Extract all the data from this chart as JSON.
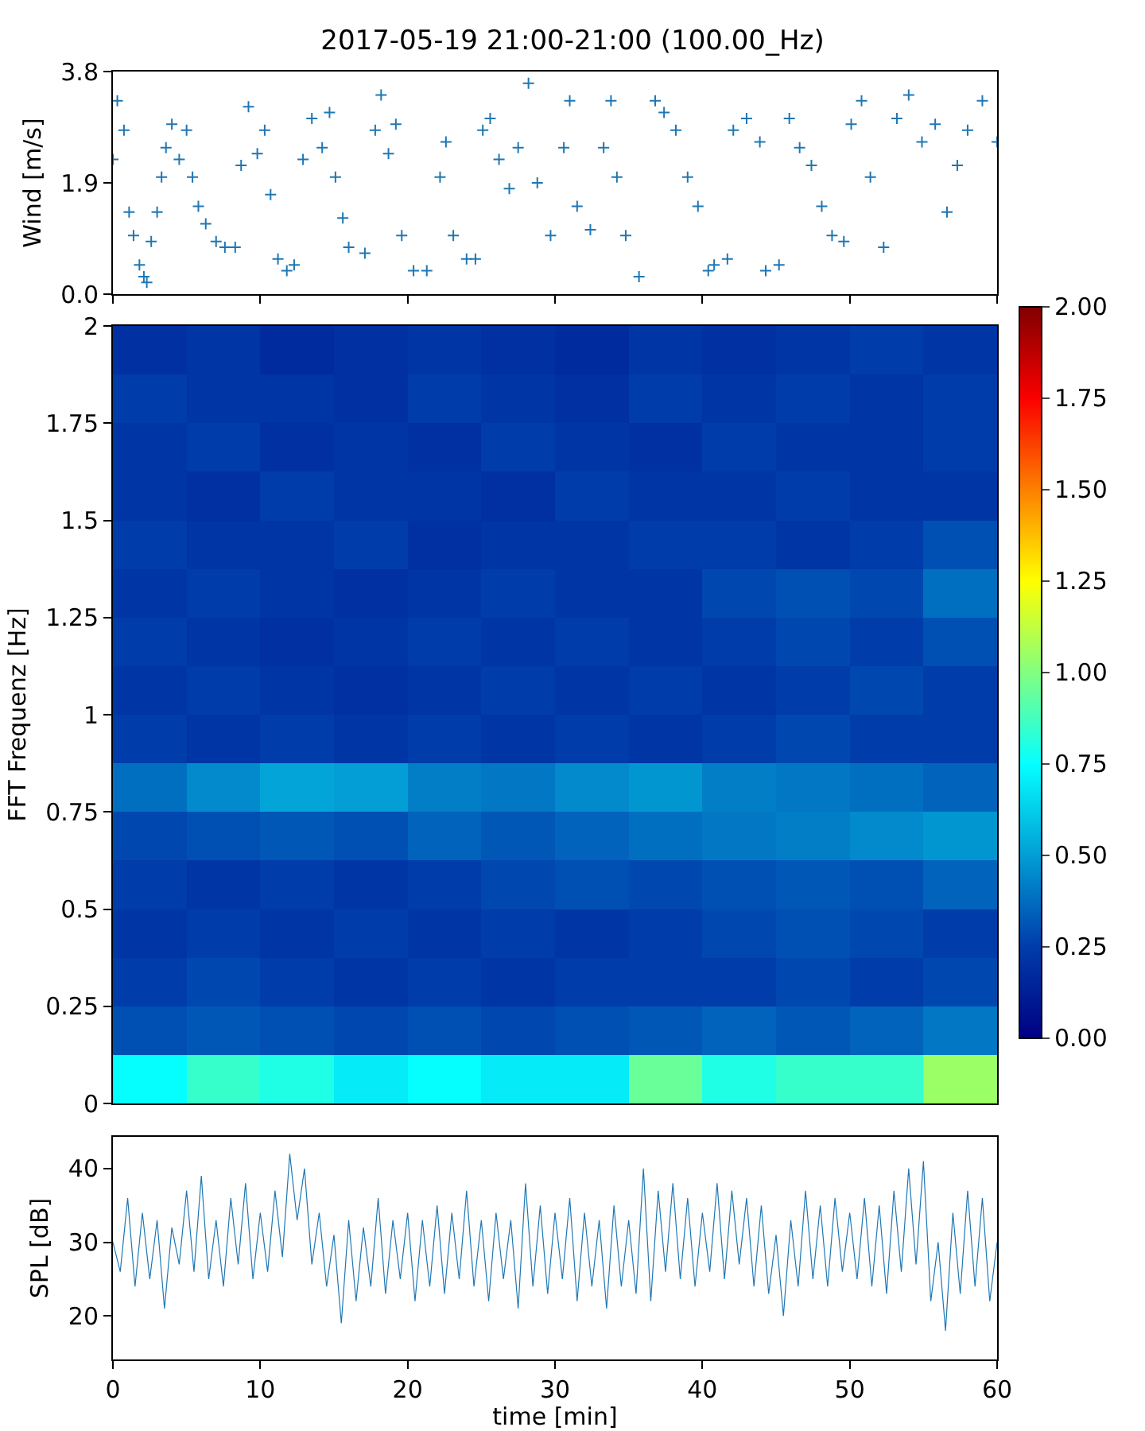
{
  "chart_data": [
    {
      "type": "scatter",
      "title": "2017-05-19 21:00-21:00 (100.00_Hz)",
      "ylabel": "Wind [m/s]",
      "marker": "cross",
      "tick_labels": "y",
      "xlim": [
        0,
        60
      ],
      "xticks": [
        {
          "value": 0,
          "label": null
        },
        {
          "value": 10,
          "label": null
        },
        {
          "value": 20,
          "label": null
        },
        {
          "value": 30,
          "label": null
        },
        {
          "value": 40,
          "label": null
        },
        {
          "value": 50,
          "label": null
        },
        {
          "value": 60,
          "label": null
        }
      ],
      "ylim": [
        0,
        3.8
      ],
      "yticks": [
        {
          "value": 0,
          "label": "0.0"
        },
        {
          "value": 1.9,
          "label": "1.9"
        },
        {
          "value": 3.8,
          "label": "3.8"
        }
      ],
      "series": [
        {
          "color": "#1f77b4",
          "x": [
            0,
            0.3,
            0.75,
            1.1,
            1.4,
            1.8,
            2.1,
            2.3,
            2.6,
            3,
            3.3,
            3.6,
            4,
            4.5,
            5,
            5.4,
            5.8,
            6.3,
            7,
            7.6,
            8.3,
            8.7,
            9.2,
            9.8,
            10.3,
            10.7,
            11.2,
            11.8,
            12.3,
            12.9,
            13.5,
            14.2,
            14.7,
            15.1,
            15.6,
            16,
            17.1,
            17.8,
            18.2,
            18.7,
            19.2,
            19.6,
            20.4,
            21.3,
            22.2,
            22.6,
            23.1,
            24,
            24.6,
            25.1,
            25.6,
            26.2,
            26.9,
            27.5,
            28.2,
            28.8,
            29.7,
            30.6,
            31,
            31.5,
            32.4,
            33.3,
            33.8,
            34.2,
            34.8,
            35.7,
            36.8,
            37.4,
            38.2,
            39,
            39.7,
            40.4,
            40.8,
            41.7,
            42.1,
            43,
            43.9,
            44.3,
            45.2,
            45.9,
            46.6,
            47.4,
            48.1,
            48.8,
            49.6,
            50.1,
            50.8,
            51.4,
            52.3,
            53.2,
            54,
            54.9,
            55.8,
            56.6,
            57.3,
            58,
            59,
            60
          ],
          "values": [
            2.3,
            3.3,
            2.8,
            1.4,
            1.0,
            0.5,
            0.3,
            0.2,
            0.9,
            1.4,
            2.0,
            2.5,
            2.9,
            2.3,
            2.8,
            2.0,
            1.5,
            1.2,
            0.9,
            0.8,
            0.8,
            2.2,
            3.2,
            2.4,
            2.8,
            1.7,
            0.6,
            0.4,
            0.5,
            2.3,
            3.0,
            2.5,
            3.1,
            2.0,
            1.3,
            0.8,
            0.7,
            2.8,
            3.4,
            2.4,
            2.9,
            1.0,
            0.4,
            0.4,
            2.0,
            2.6,
            1.0,
            0.6,
            0.6,
            2.8,
            3.0,
            2.3,
            1.8,
            2.5,
            3.6,
            1.9,
            1.0,
            2.5,
            3.3,
            1.5,
            1.1,
            2.5,
            3.3,
            2.0,
            1.0,
            0.3,
            3.3,
            3.1,
            2.8,
            2.0,
            1.5,
            0.4,
            0.5,
            0.6,
            2.8,
            3.0,
            2.6,
            0.4,
            0.5,
            3.0,
            2.5,
            2.2,
            1.5,
            1.0,
            0.9,
            2.9,
            3.3,
            2.0,
            0.8,
            3.0,
            3.4,
            2.6,
            2.9,
            1.4,
            2.2,
            2.8,
            3.3,
            2.6
          ]
        }
      ]
    },
    {
      "type": "heatmap",
      "ylabel": "FFT Frequenz [Hz]",
      "tick_labels": "y",
      "xlim": [
        0,
        60
      ],
      "ylim": [
        0,
        2
      ],
      "yticks": [
        0,
        0.25,
        0.5,
        0.75,
        1,
        1.25,
        1.5,
        1.75,
        2
      ],
      "clim": [
        0,
        2
      ],
      "cticks": [
        {
          "value": 0,
          "label": "0.00"
        },
        {
          "value": 0.25,
          "label": "0.25"
        },
        {
          "value": 0.5,
          "label": "0.50"
        },
        {
          "value": 0.75,
          "label": "0.75"
        },
        {
          "value": 1,
          "label": "1.00"
        },
        {
          "value": 1.25,
          "label": "1.25"
        },
        {
          "value": 1.5,
          "label": "1.50"
        },
        {
          "value": 1.75,
          "label": "1.75"
        },
        {
          "value": 2,
          "label": "2.00"
        }
      ],
      "x": [
        2.5,
        7.5,
        12.5,
        17.5,
        22.5,
        27.5,
        32.5,
        37.5,
        42.5,
        47.5,
        52.5,
        57.5
      ],
      "cells": [
        [
          0.2,
          0.22,
          0.18,
          0.2,
          0.22,
          0.2,
          0.18,
          0.22,
          0.2,
          0.22,
          0.25,
          0.22
        ],
        [
          0.25,
          0.22,
          0.22,
          0.2,
          0.25,
          0.22,
          0.2,
          0.25,
          0.22,
          0.25,
          0.22,
          0.25
        ],
        [
          0.22,
          0.25,
          0.2,
          0.22,
          0.2,
          0.25,
          0.22,
          0.2,
          0.25,
          0.22,
          0.22,
          0.25
        ],
        [
          0.22,
          0.2,
          0.25,
          0.22,
          0.22,
          0.2,
          0.25,
          0.22,
          0.22,
          0.25,
          0.22,
          0.22
        ],
        [
          0.25,
          0.22,
          0.22,
          0.25,
          0.2,
          0.22,
          0.22,
          0.25,
          0.25,
          0.22,
          0.25,
          0.3
        ],
        [
          0.22,
          0.25,
          0.22,
          0.2,
          0.22,
          0.25,
          0.22,
          0.22,
          0.28,
          0.3,
          0.28,
          0.38
        ],
        [
          0.25,
          0.22,
          0.2,
          0.22,
          0.25,
          0.22,
          0.25,
          0.22,
          0.25,
          0.28,
          0.25,
          0.3
        ],
        [
          0.22,
          0.25,
          0.22,
          0.2,
          0.22,
          0.25,
          0.22,
          0.25,
          0.22,
          0.25,
          0.28,
          0.25
        ],
        [
          0.25,
          0.22,
          0.25,
          0.22,
          0.25,
          0.22,
          0.25,
          0.22,
          0.25,
          0.28,
          0.25,
          0.25
        ],
        [
          0.38,
          0.45,
          0.52,
          0.5,
          0.42,
          0.4,
          0.45,
          0.48,
          0.42,
          0.4,
          0.38,
          0.35
        ],
        [
          0.28,
          0.3,
          0.32,
          0.3,
          0.35,
          0.32,
          0.35,
          0.38,
          0.4,
          0.42,
          0.45,
          0.48
        ],
        [
          0.25,
          0.22,
          0.25,
          0.22,
          0.25,
          0.28,
          0.3,
          0.28,
          0.3,
          0.32,
          0.3,
          0.35
        ],
        [
          0.22,
          0.25,
          0.22,
          0.25,
          0.22,
          0.25,
          0.22,
          0.25,
          0.28,
          0.3,
          0.28,
          0.25
        ],
        [
          0.25,
          0.28,
          0.25,
          0.22,
          0.25,
          0.22,
          0.25,
          0.25,
          0.25,
          0.28,
          0.25,
          0.28
        ],
        [
          0.3,
          0.32,
          0.3,
          0.28,
          0.3,
          0.28,
          0.3,
          0.32,
          0.35,
          0.32,
          0.35,
          0.4
        ],
        [
          0.75,
          0.85,
          0.8,
          0.7,
          0.75,
          0.7,
          0.7,
          0.95,
          0.8,
          0.85,
          0.85,
          1.05
        ]
      ]
    },
    {
      "type": "line",
      "xlabel": "time [min]",
      "ylabel": "SPL [dB]",
      "xlim": [
        0,
        60
      ],
      "xticks": [
        0,
        10,
        20,
        30,
        40,
        50,
        60
      ],
      "ylim": [
        14.1,
        44.3
      ],
      "yticks": [
        20,
        30,
        40
      ],
      "x": [
        0,
        0.5,
        1,
        1.5,
        2,
        2.5,
        3,
        3.5,
        4,
        4.5,
        5,
        5.5,
        6,
        6.5,
        7,
        7.5,
        8,
        8.5,
        9,
        9.5,
        10,
        10.5,
        11,
        11.5,
        12,
        12.5,
        13,
        13.5,
        14,
        14.5,
        15,
        15.5,
        16,
        16.5,
        17,
        17.5,
        18,
        18.5,
        19,
        19.5,
        20,
        20.5,
        21,
        21.5,
        22,
        22.5,
        23,
        23.5,
        24,
        24.5,
        25,
        25.5,
        26,
        26.5,
        27,
        27.5,
        28,
        28.5,
        29,
        29.5,
        30,
        30.5,
        31,
        31.5,
        32,
        32.5,
        33,
        33.5,
        34,
        34.5,
        35,
        35.5,
        36,
        36.5,
        37,
        37.5,
        38,
        38.5,
        39,
        39.5,
        40,
        40.5,
        41,
        41.5,
        42,
        42.5,
        43,
        43.5,
        44,
        44.5,
        45,
        45.5,
        46,
        46.5,
        47,
        47.5,
        48,
        48.5,
        49,
        49.5,
        50,
        50.5,
        51,
        51.5,
        52,
        52.5,
        53,
        53.5,
        54,
        54.5,
        55,
        55.5,
        56,
        56.5,
        57,
        57.5,
        58,
        58.5,
        59,
        59.5,
        60
      ],
      "series": [
        {
          "color": "#1f77b4",
          "values": [
            30,
            26,
            36,
            24,
            34,
            25,
            33,
            21,
            32,
            27,
            37,
            26,
            39,
            25,
            33,
            24,
            36,
            27,
            38,
            25,
            34,
            26,
            37,
            28,
            42,
            33,
            40,
            27,
            34,
            24,
            31,
            19,
            33,
            22,
            32,
            24,
            36,
            23,
            33,
            25,
            34,
            22,
            33,
            24,
            35,
            23,
            34,
            25,
            37,
            24,
            33,
            22,
            34,
            25,
            33,
            21,
            38,
            24,
            35,
            23,
            34,
            25,
            36,
            22,
            34,
            24,
            33,
            21,
            35,
            24,
            33,
            23,
            40,
            22,
            37,
            26,
            38,
            25,
            36,
            24,
            34,
            26,
            38,
            25,
            37,
            27,
            36,
            24,
            35,
            23,
            31,
            20,
            33,
            24,
            37,
            25,
            35,
            24,
            36,
            26,
            34,
            25,
            36,
            24,
            35,
            23,
            37,
            26,
            40,
            27,
            41,
            22,
            30,
            18,
            34,
            23,
            37,
            24,
            36,
            22,
            30
          ]
        }
      ]
    }
  ]
}
